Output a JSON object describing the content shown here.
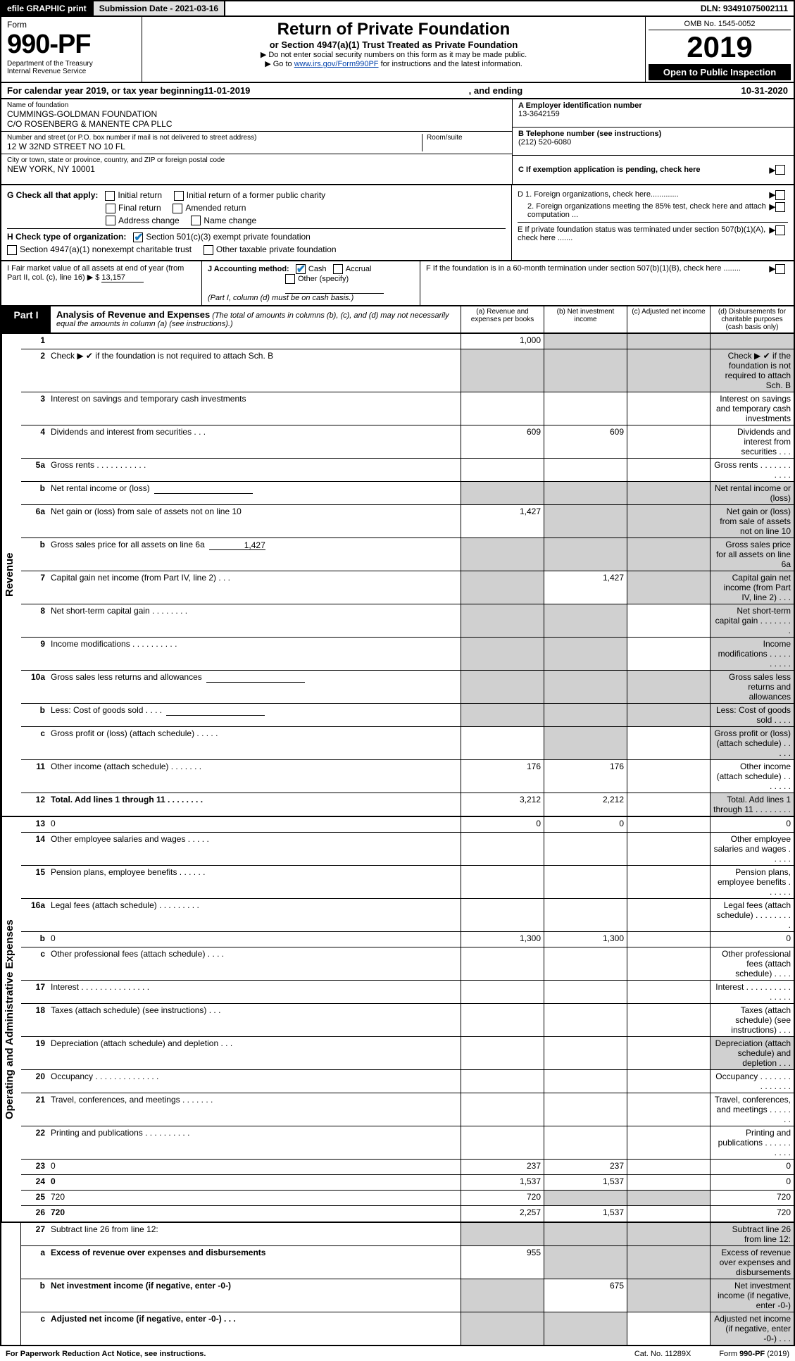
{
  "topbar": {
    "efile": "efile GRAPHIC print",
    "sub_label": "Submission Date - 2021-03-16",
    "dln": "DLN: 93491075002111"
  },
  "header": {
    "form_word": "Form",
    "form_no": "990-PF",
    "dept1": "Department of the Treasury",
    "dept2": "Internal Revenue Service",
    "title": "Return of Private Foundation",
    "subtitle": "or Section 4947(a)(1) Trust Treated as Private Foundation",
    "instr1": "▶ Do not enter social security numbers on this form as it may be made public.",
    "instr2_pre": "▶ Go to ",
    "instr2_link": "www.irs.gov/Form990PF",
    "instr2_post": " for instructions and the latest information.",
    "omb": "OMB No. 1545-0052",
    "year": "2019",
    "open": "Open to Public Inspection"
  },
  "cal": {
    "pre": "For calendar year 2019, or tax year beginning ",
    "begin": "11-01-2019",
    "mid": ", and ending ",
    "end": "10-31-2020"
  },
  "id": {
    "name_label": "Name of foundation",
    "name1": "CUMMINGS-GOLDMAN FOUNDATION",
    "name2": "C/O ROSENBERG & MANENTE CPA PLLC",
    "street_label": "Number and street (or P.O. box number if mail is not delivered to street address)",
    "room_label": "Room/suite",
    "street": "12 W 32ND STREET NO 10 FL",
    "city_label": "City or town, state or province, country, and ZIP or foreign postal code",
    "city": "NEW YORK, NY  10001",
    "A_label": "A Employer identification number",
    "A_val": "13-3642159",
    "B_label": "B Telephone number (see instructions)",
    "B_val": "(212) 520-6080",
    "C_label": "C If exemption application is pending, check here"
  },
  "g": {
    "label": "G Check all that apply:",
    "o1": "Initial return",
    "o2": "Initial return of a former public charity",
    "o3": "Final return",
    "o4": "Amended return",
    "o5": "Address change",
    "o6": "Name change"
  },
  "h": {
    "label": "H Check type of organization:",
    "o1": "Section 501(c)(3) exempt private foundation",
    "o2": "Section 4947(a)(1) nonexempt charitable trust",
    "o3": "Other taxable private foundation"
  },
  "d": {
    "d1": "D 1. Foreign organizations, check here.............",
    "d2": "2. Foreign organizations meeting the 85% test, check here and attach computation ...",
    "e": "E  If private foundation status was terminated under section 507(b)(1)(A), check here .......",
    "f": "F  If the foundation is in a 60-month termination under section 507(b)(1)(B), check here ........"
  },
  "i": {
    "label": "I Fair market value of all assets at end of year (from Part II, col. (c), line 16) ▶ $",
    "val": "13,157"
  },
  "j": {
    "label": "J Accounting method:",
    "cash": "Cash",
    "accrual": "Accrual",
    "other": "Other (specify)",
    "note": "(Part I, column (d) must be on cash basis.)"
  },
  "part1": {
    "tag": "Part I",
    "title": "Analysis of Revenue and Expenses",
    "note": "(The total of amounts in columns (b), (c), and (d) may not necessarily equal the amounts in column (a) (see instructions).)",
    "colA": "(a)   Revenue and expenses per books",
    "colB": "(b)   Net investment income",
    "colC": "(c)  Adjusted net income",
    "colD": "(d)  Disbursements for charitable purposes (cash basis only)"
  },
  "vlabels": {
    "rev": "Revenue",
    "exp": "Operating and Administrative Expenses"
  },
  "lines": {
    "1": {
      "n": "1",
      "d": "",
      "a": "1,000",
      "b": "",
      "c": "",
      "grey": [
        "b",
        "c",
        "d"
      ]
    },
    "2": {
      "n": "2",
      "d": "Check ▶ ✔ if the foundation is not required to attach Sch. B",
      "grey": [
        "a",
        "b",
        "c",
        "d"
      ]
    },
    "3": {
      "n": "3",
      "d": "Interest on savings and temporary cash investments"
    },
    "4": {
      "n": "4",
      "d": "Dividends and interest from securities   .   .   .",
      "a": "609",
      "b": "609"
    },
    "5a": {
      "n": "5a",
      "d": "Gross rents      .   .   .   .   .   .   .   .   .   .   ."
    },
    "5b": {
      "n": "b",
      "d": "Net rental income or (loss)",
      "inline": true,
      "grey": [
        "a",
        "b",
        "c",
        "d"
      ]
    },
    "6a": {
      "n": "6a",
      "d": "Net gain or (loss) from sale of assets not on line 10",
      "a": "1,427",
      "grey": [
        "b",
        "c",
        "d"
      ]
    },
    "6b": {
      "n": "b",
      "d": "Gross sales price for all assets on line 6a",
      "inline": true,
      "inline_val": "1,427",
      "grey": [
        "a",
        "b",
        "c",
        "d"
      ]
    },
    "7": {
      "n": "7",
      "d": "Capital gain net income (from Part IV, line 2)   .   .   .",
      "b": "1,427",
      "grey": [
        "a",
        "c",
        "d"
      ]
    },
    "8": {
      "n": "8",
      "d": "Net short-term capital gain   .   .   .   .   .   .   .   .",
      "grey": [
        "a",
        "b",
        "d"
      ]
    },
    "9": {
      "n": "9",
      "d": "Income modifications  .   .   .   .   .   .   .   .   .   .",
      "grey": [
        "a",
        "b",
        "d"
      ]
    },
    "10a": {
      "n": "10a",
      "d": "Gross sales less returns and allowances",
      "inline": true,
      "grey": [
        "a",
        "b",
        "c",
        "d"
      ]
    },
    "10b": {
      "n": "b",
      "d": "Less: Cost of goods sold     .   .   .   .",
      "inline": true,
      "grey": [
        "a",
        "b",
        "c",
        "d"
      ]
    },
    "10c": {
      "n": "c",
      "d": "Gross profit or (loss) (attach schedule)   .   .   .   .   .",
      "grey": [
        "b",
        "d"
      ]
    },
    "11": {
      "n": "11",
      "d": "Other income (attach schedule)    .   .   .   .   .   .   .",
      "a": "176",
      "b": "176"
    },
    "12": {
      "n": "12",
      "d": "Total. Add lines 1 through 11    .   .   .   .   .   .   .   .",
      "a": "3,212",
      "b": "2,212",
      "bold": true,
      "grey": [
        "d"
      ]
    },
    "13": {
      "n": "13",
      "d": "0",
      "a": "0",
      "b": "0"
    },
    "14": {
      "n": "14",
      "d": "Other employee salaries and wages    .   .   .   .   ."
    },
    "15": {
      "n": "15",
      "d": "Pension plans, employee benefits   .   .   .   .   .   ."
    },
    "16a": {
      "n": "16a",
      "d": "Legal fees (attach schedule)  .   .   .   .   .   .   .   .   ."
    },
    "16b": {
      "n": "b",
      "d": "0",
      "a": "1,300",
      "b": "1,300"
    },
    "16c": {
      "n": "c",
      "d": "Other professional fees (attach schedule)    .   .   .   ."
    },
    "17": {
      "n": "17",
      "d": "Interest  .   .   .   .   .   .   .   .   .   .   .   .   .   .   ."
    },
    "18": {
      "n": "18",
      "d": "Taxes (attach schedule) (see instructions)    .   .   ."
    },
    "19": {
      "n": "19",
      "d": "Depreciation (attach schedule) and depletion    .   .   .",
      "grey": [
        "d"
      ]
    },
    "20": {
      "n": "20",
      "d": "Occupancy  .   .   .   .   .   .   .   .   .   .   .   .   .   ."
    },
    "21": {
      "n": "21",
      "d": "Travel, conferences, and meetings  .   .   .   .   .   .   ."
    },
    "22": {
      "n": "22",
      "d": "Printing and publications  .   .   .   .   .   .   .   .   .   ."
    },
    "23": {
      "n": "23",
      "d": "0",
      "a": "237",
      "b": "237"
    },
    "24": {
      "n": "24",
      "d": "0",
      "a": "1,537",
      "b": "1,537",
      "bold": true
    },
    "25": {
      "n": "25",
      "d": "720",
      "a": "720",
      "grey": [
        "b",
        "c"
      ]
    },
    "26": {
      "n": "26",
      "d": "720",
      "a": "2,257",
      "b": "1,537",
      "bold": true
    },
    "27": {
      "n": "27",
      "d": "Subtract line 26 from line 12:",
      "grey": [
        "a",
        "b",
        "c",
        "d"
      ]
    },
    "27a": {
      "n": "a",
      "d": "Excess of revenue over expenses and disbursements",
      "a": "955",
      "bold": true,
      "grey": [
        "b",
        "c",
        "d"
      ]
    },
    "27b": {
      "n": "b",
      "d": "Net investment income (if negative, enter -0-)",
      "b": "675",
      "bold": true,
      "grey": [
        "a",
        "c",
        "d"
      ]
    },
    "27c": {
      "n": "c",
      "d": "Adjusted net income (if negative, enter -0-)   .   .   .",
      "bold": true,
      "grey": [
        "a",
        "b",
        "d"
      ]
    }
  },
  "footer": {
    "left": "For Paperwork Reduction Act Notice, see instructions.",
    "mid": "Cat. No. 11289X",
    "right": "Form 990-PF (2019)"
  },
  "colors": {
    "link": "#0645ad",
    "check": "#1a7bbf",
    "grey": "#d0d0d0"
  }
}
